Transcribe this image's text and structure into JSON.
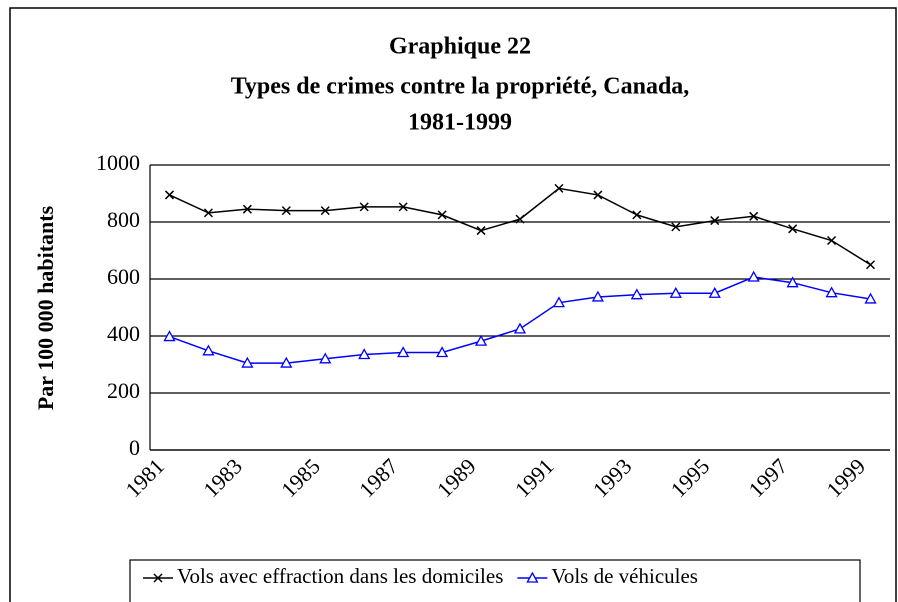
{
  "chart_data": {
    "type": "line",
    "title": [
      "Graphique 22",
      "Types de crimes contre la propriété, Canada,",
      "1981-1999"
    ],
    "y_label": "Par 100 000 habitants",
    "categories": [
      "1981",
      null,
      "1983",
      null,
      "1985",
      null,
      "1987",
      null,
      "1989",
      null,
      "1991",
      null,
      "1993",
      null,
      "1995",
      null,
      "1997",
      null,
      "1999"
    ],
    "series": [
      {
        "name": "Vols avec effraction dans les domiciles",
        "color": "#000000",
        "marker": "x",
        "values": [
          895,
          832,
          845,
          840,
          840,
          853,
          853,
          825,
          770,
          810,
          918,
          895,
          825,
          783,
          805,
          820,
          776,
          735,
          650
        ]
      },
      {
        "name": "Vols de véhicules",
        "color": "#0000ff",
        "marker": "triangle",
        "values": [
          398,
          348,
          305,
          305,
          320,
          335,
          342,
          342,
          382,
          425,
          517,
          537,
          545,
          550,
          550,
          607,
          587,
          552,
          530
        ]
      }
    ],
    "ylim": [
      0,
      1000
    ],
    "yticks": [
      0,
      200,
      400,
      600,
      800,
      1000
    ],
    "grid": true,
    "legend": "bottom"
  }
}
